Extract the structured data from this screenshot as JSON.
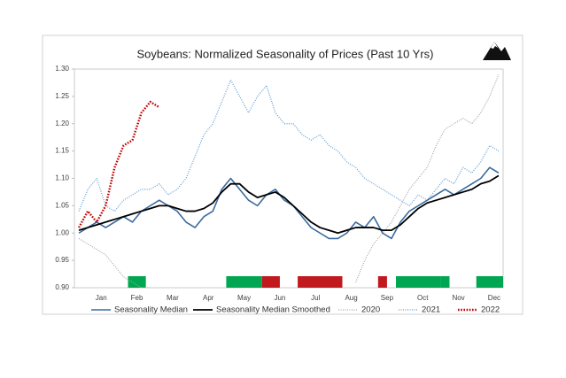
{
  "chart_data": {
    "type": "line",
    "title": "Soybeans: Normalized Seasonality of Prices (Past 10 Yrs)",
    "categories": [
      null,
      null,
      "Jan",
      null,
      null,
      null,
      "Feb",
      null,
      null,
      null,
      "Mar",
      null,
      null,
      null,
      "Apr",
      null,
      null,
      null,
      "May",
      null,
      null,
      null,
      "Jun",
      null,
      null,
      null,
      "Jul",
      null,
      null,
      null,
      "Aug",
      null,
      null,
      null,
      "Sep",
      null,
      null,
      null,
      "Oct",
      null,
      null,
      null,
      "Nov",
      null,
      null,
      null,
      "Dec",
      null
    ],
    "series": [
      {
        "name": "Seasonality Median",
        "color": "#3a6a9e",
        "style": "solid",
        "width": 1.6,
        "values": [
          1.0,
          1.01,
          1.02,
          1.01,
          1.02,
          1.03,
          1.02,
          1.04,
          1.05,
          1.06,
          1.05,
          1.04,
          1.02,
          1.01,
          1.03,
          1.04,
          1.08,
          1.1,
          1.08,
          1.06,
          1.05,
          1.07,
          1.08,
          1.06,
          1.05,
          1.03,
          1.01,
          1.0,
          0.99,
          0.99,
          1.0,
          1.02,
          1.01,
          1.03,
          1.0,
          0.99,
          1.02,
          1.04,
          1.05,
          1.06,
          1.07,
          1.08,
          1.07,
          1.08,
          1.09,
          1.1,
          1.12,
          1.11
        ]
      },
      {
        "name": "Seasonality Median Smoothed",
        "color": "#000000",
        "style": "solid",
        "width": 1.8,
        "values": [
          1.005,
          1.01,
          1.015,
          1.02,
          1.025,
          1.03,
          1.035,
          1.04,
          1.045,
          1.05,
          1.05,
          1.045,
          1.04,
          1.04,
          1.045,
          1.055,
          1.075,
          1.09,
          1.09,
          1.075,
          1.065,
          1.07,
          1.075,
          1.065,
          1.05,
          1.035,
          1.02,
          1.01,
          1.005,
          1.0,
          1.005,
          1.01,
          1.01,
          1.01,
          1.005,
          1.005,
          1.015,
          1.03,
          1.045,
          1.055,
          1.06,
          1.065,
          1.07,
          1.075,
          1.08,
          1.09,
          1.095,
          1.105
        ]
      },
      {
        "name": "2020",
        "color": "#a6a6a6",
        "style": "dotted",
        "width": 1.2,
        "values": [
          0.99,
          0.98,
          0.97,
          0.96,
          0.94,
          0.92,
          0.91,
          0.9,
          0.9,
          null,
          null,
          null,
          null,
          null,
          null,
          null,
          null,
          null,
          null,
          null,
          null,
          null,
          null,
          null,
          null,
          null,
          null,
          null,
          null,
          null,
          null,
          0.91,
          0.95,
          0.98,
          1.0,
          1.02,
          1.05,
          1.08,
          1.1,
          1.12,
          1.16,
          1.19,
          1.2,
          1.21,
          1.2,
          1.22,
          1.25,
          1.29
        ]
      },
      {
        "name": "2021",
        "color": "#5b9bd5",
        "style": "dotted",
        "width": 1.2,
        "values": [
          1.04,
          1.08,
          1.1,
          1.05,
          1.04,
          1.06,
          1.07,
          1.08,
          1.08,
          1.09,
          1.07,
          1.08,
          1.1,
          1.14,
          1.18,
          1.2,
          1.24,
          1.28,
          1.25,
          1.22,
          1.25,
          1.27,
          1.22,
          1.2,
          1.2,
          1.18,
          1.17,
          1.18,
          1.16,
          1.15,
          1.13,
          1.12,
          1.1,
          1.09,
          1.08,
          1.07,
          1.06,
          1.05,
          1.07,
          1.06,
          1.08,
          1.1,
          1.09,
          1.12,
          1.11,
          1.13,
          1.16,
          1.15
        ]
      },
      {
        "name": "2022",
        "color": "#c00000",
        "style": "dotted",
        "width": 2.4,
        "values": [
          1.01,
          1.04,
          1.02,
          1.05,
          1.12,
          1.16,
          1.17,
          1.22,
          1.24,
          1.23,
          null,
          null,
          null,
          null,
          null,
          null,
          null,
          null,
          null,
          null,
          null,
          null,
          null,
          null,
          null,
          null,
          null,
          null,
          null,
          null,
          null,
          null,
          null,
          null,
          null,
          null,
          null,
          null,
          null,
          null,
          null,
          null,
          null,
          null,
          null,
          null,
          null,
          null
        ]
      }
    ],
    "highlight_bands": [
      {
        "color": "#00a651",
        "from": 6,
        "to": 7
      },
      {
        "color": "#00a651",
        "from": 17,
        "to": 20
      },
      {
        "color": "#c0191e",
        "from": 21,
        "to": 22
      },
      {
        "color": "#c0191e",
        "from": 25,
        "to": 29
      },
      {
        "color": "#c0191e",
        "from": 34,
        "to": 34
      },
      {
        "color": "#00a651",
        "from": 36,
        "to": 40
      },
      {
        "color": "#00a651",
        "from": 41,
        "to": 41
      },
      {
        "color": "#00a651",
        "from": 45,
        "to": 47
      }
    ],
    "ylim": [
      0.9,
      1.3
    ],
    "yticks": [
      {
        "value": 0.9,
        "label": "0.90"
      },
      {
        "value": 0.95,
        "label": "0.95"
      },
      {
        "value": 1.0,
        "label": "1.00"
      },
      {
        "value": 1.05,
        "label": "1.05"
      },
      {
        "value": 1.1,
        "label": "1.10"
      },
      {
        "value": 1.15,
        "label": "1.15"
      },
      {
        "value": 1.2,
        "label": "1.20"
      },
      {
        "value": 1.25,
        "label": "1.25"
      },
      {
        "value": 1.3,
        "label": "1.30"
      }
    ],
    "grid": false,
    "legend": "bottom"
  }
}
